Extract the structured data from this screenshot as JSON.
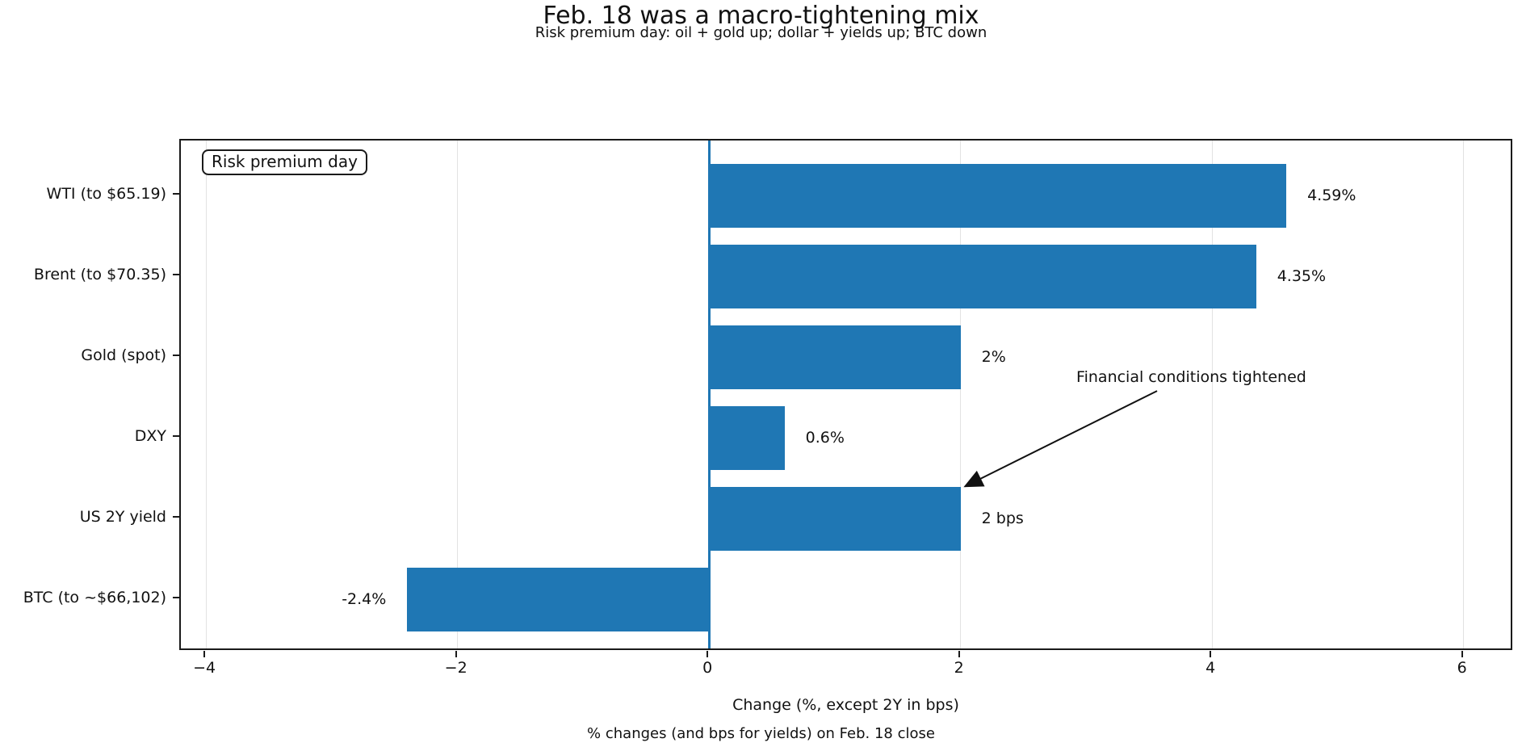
{
  "chart_data": {
    "type": "bar",
    "orientation": "horizontal",
    "title": "Feb. 18 was a macro-tightening mix",
    "subtitle": "Risk premium day: oil + gold up; dollar + yields up; BTC down",
    "footnote": "% changes (and bps for yields) on Feb. 18 close",
    "xlabel": "Change (%, except 2Y in bps)",
    "ylabel": "",
    "categories": [
      "WTI (to $65.19)",
      "Brent (to $70.35)",
      "Gold (spot)",
      "DXY",
      "US 2Y yield",
      "BTC (to ~$66,102)"
    ],
    "values": [
      4.59,
      4.35,
      2.0,
      0.6,
      2.0,
      -2.4
    ],
    "bar_labels": [
      "4.59%",
      "4.35%",
      "2%",
      "0.6%",
      "2 bps",
      "-2.4%"
    ],
    "xlim": [
      -4.2,
      6.4
    ],
    "xticks": [
      -4,
      -2,
      0,
      2,
      4,
      6
    ],
    "xtick_labels": [
      "−4",
      "−2",
      "0",
      "2",
      "4",
      "6"
    ],
    "grid": true,
    "zero_line_x": 0,
    "inset_label": "Risk premium day",
    "annotation": {
      "text": "Financial conditions tightened",
      "text_center_frac": [
        0.758,
        0.463
      ],
      "arrow_start_frac": [
        0.735,
        0.493
      ],
      "arrow_tip_frac": [
        0.59,
        0.681
      ]
    },
    "colors": {
      "bar": "#1f77b4",
      "zero_line": "#1f77b4",
      "grid": "#e2e2e2",
      "spine": "#1a1a1a",
      "text": "#111111"
    }
  }
}
